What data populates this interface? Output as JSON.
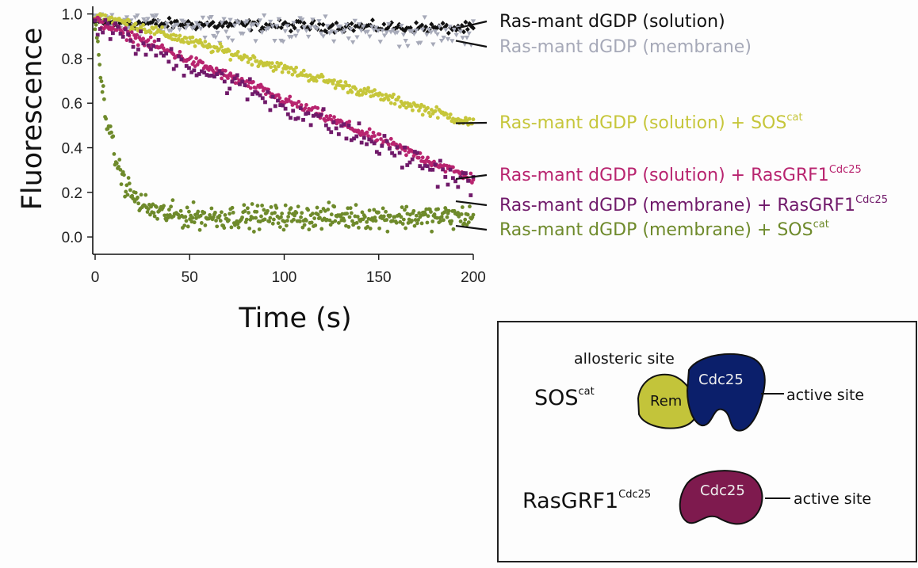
{
  "chart_data": {
    "type": "scatter",
    "title": "",
    "xlabel": "Time (s)",
    "ylabel": "Fluorescence",
    "xlim": [
      0,
      200
    ],
    "ylim": [
      -0.06,
      1.02
    ],
    "x_ticks": [
      "0",
      "50",
      "100",
      "150",
      "200"
    ],
    "y_ticks": [
      "0.0",
      "0.2",
      "0.4",
      "0.6",
      "0.8",
      "1.0"
    ],
    "grid": false,
    "legend_placement": "right, inline labels",
    "series": [
      {
        "key": "solution",
        "label": "Ras-mant dGDP (solution)",
        "sup": "",
        "color": "#111111",
        "marker": "diamond",
        "start": 0.96,
        "end": 0.935,
        "tau": 0,
        "noise": 0.02,
        "count": 200,
        "label_y": 0.935
      },
      {
        "key": "membrane",
        "label": "Ras-mant dGDP (membrane)",
        "sup": "",
        "color": "#a6a9b8",
        "marker": "triangle",
        "start": 0.97,
        "end": 0.9,
        "tau": 0,
        "noise": 0.05,
        "count": 180,
        "label_y": 0.88
      },
      {
        "key": "solution_sos",
        "label": "Ras-mant dGDP (solution) + SOS",
        "sup": "cat",
        "color": "#c6c63a",
        "marker": "circle",
        "start": 1.0,
        "end": 0.51,
        "tau": 0,
        "noise": 0.02,
        "count": 300,
        "label_y": 0.51
      },
      {
        "key": "solution_rasgrf",
        "label": "Ras-mant dGDP (solution) + RasGRF1",
        "sup": "Cdc25",
        "color": "#b8246f",
        "marker": "circle",
        "start": 0.97,
        "end": 0.26,
        "tau": 0,
        "noise": 0.02,
        "count": 300,
        "label_y": 0.26
      },
      {
        "key": "membrane_rasgrf",
        "label": "Ras-mant dGDP (membrane) + RasGRF1",
        "sup": "Cdc25",
        "color": "#701a6a",
        "marker": "square",
        "start": 0.95,
        "end": 0.23,
        "tau": 0,
        "noise": 0.05,
        "count": 150,
        "label_y": 0.16
      },
      {
        "key": "membrane_sos",
        "label": "Ras-mant dGDP (membrane) + SOS",
        "sup": "cat",
        "color": "#6e8a2b",
        "marker": "circle",
        "start": 0.97,
        "end": 0.09,
        "tau": 9,
        "noise": 0.045,
        "count": 420,
        "label_y": 0.05
      }
    ]
  },
  "inset": {
    "sos_label": "SOS",
    "sos_sup": "cat",
    "rasgrf_label": "RasGRF1",
    "rasgrf_sup": "Cdc25",
    "allosteric_label": "allosteric site",
    "rem_label": "Rem",
    "cdc25_label": "Cdc25",
    "active_site_label": "active site",
    "rem_color": "#c3c43a",
    "sos_cdc25_color": "#0b1f6b",
    "rasgrf_cdc25_color": "#7e1a4e"
  }
}
